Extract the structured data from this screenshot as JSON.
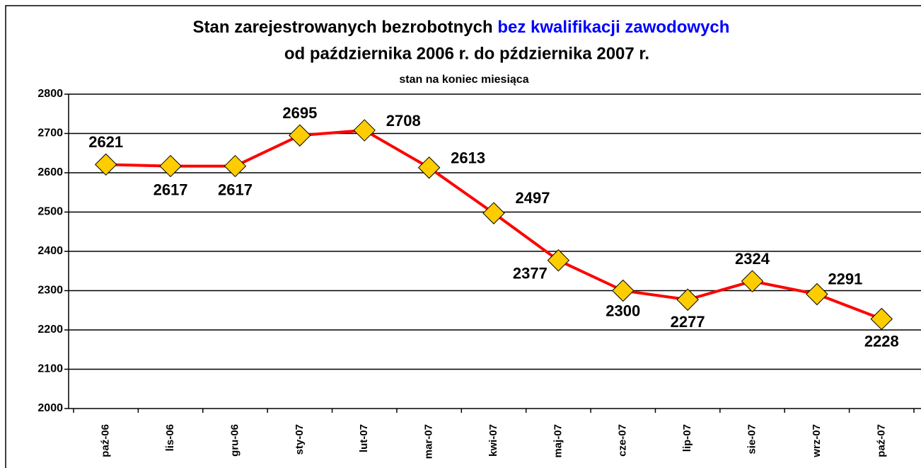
{
  "chart_data": {
    "type": "line",
    "title": "Stan zarejestrowanych bezrobotnych",
    "title_highlight": "bez kwalifikacji zawodowych",
    "title_line2": "od października 2006 r. do pździernika 2007 r.",
    "subtitle": "stan na koniec miesiąca",
    "categories": [
      "paź-06",
      "lis-06",
      "gru-06",
      "sty-07",
      "lut-07",
      "mar-07",
      "kwi-07",
      "maj-07",
      "cze-07",
      "lip-07",
      "sie-07",
      "wrz-07",
      "paź-07"
    ],
    "values": [
      2621,
      2617,
      2617,
      2695,
      2708,
      2613,
      2497,
      2377,
      2300,
      2277,
      2324,
      2291,
      2228
    ],
    "color": "#ff0000",
    "marker_color": "#ffcc00",
    "highlight_color": "#0000ff",
    "ylim": [
      2000,
      2800
    ],
    "yticks": [
      2000,
      2100,
      2200,
      2300,
      2400,
      2500,
      2600,
      2700,
      2800
    ],
    "grid": true
  }
}
